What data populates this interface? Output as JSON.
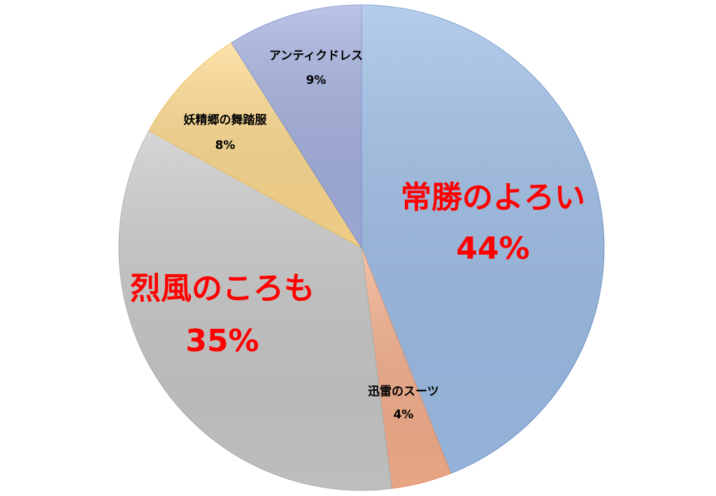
{
  "chart_data": {
    "type": "pie",
    "categories": [
      "常勝のよろい",
      "迅雷のスーツ",
      "烈風のころも",
      "妖精郷の舞踏服",
      "アンティクドレス"
    ],
    "values": [
      44,
      4,
      35,
      8,
      9
    ],
    "value_labels": [
      "44%",
      "4%",
      "35%",
      "8%",
      "9%"
    ],
    "colors": [
      "#9dbde6",
      "#f4ae8b",
      "#c8c8c8",
      "#fdd98e",
      "#a4b0de"
    ]
  }
}
